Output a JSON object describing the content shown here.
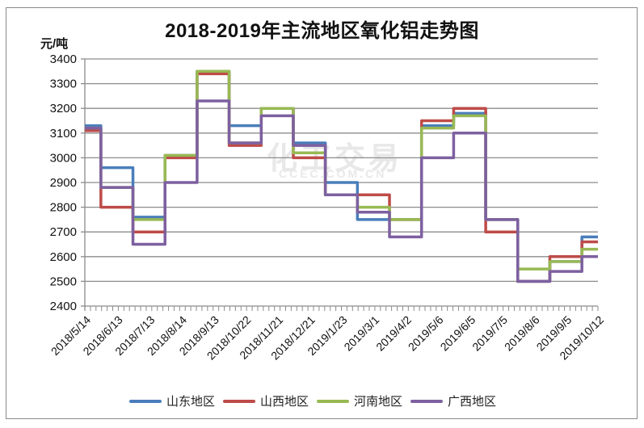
{
  "chart_data": {
    "type": "line",
    "title": "2018-2019年主流地区氧化铝走势图",
    "ylabel": "元/吨",
    "xlabel": "",
    "ylim": [
      2400,
      3400
    ],
    "yticks": [
      2400,
      2500,
      2600,
      2700,
      2800,
      2900,
      3000,
      3100,
      3200,
      3300,
      3400
    ],
    "grid": "horizontal",
    "legend_position": "bottom",
    "x": [
      "2018/5/14",
      "2018/6/13",
      "2018/7/13",
      "2018/8/14",
      "2018/9/13",
      "2018/10/22",
      "2018/11/21",
      "2018/12/21",
      "2019/1/23",
      "2019/3/1",
      "2019/4/2",
      "2019/5/6",
      "2019/6/5",
      "2019/7/5",
      "2019/8/6",
      "2019/9/5",
      "2019/10/12"
    ],
    "series": [
      {
        "name": "山东地区",
        "color": "#4a7ebb",
        "values": [
          3130,
          2960,
          2760,
          3010,
          3350,
          3130,
          3200,
          3060,
          2900,
          2750,
          2750,
          3130,
          3180,
          2750,
          2500,
          2580,
          2680
        ]
      },
      {
        "name": "山西地区",
        "color": "#be4b48",
        "values": [
          3110,
          2800,
          2700,
          3000,
          3340,
          3050,
          3200,
          3000,
          2850,
          2850,
          2750,
          3150,
          3200,
          2700,
          2500,
          2600,
          2660
        ]
      },
      {
        "name": "河南地区",
        "color": "#98b954",
        "values": [
          3120,
          2880,
          2750,
          3010,
          3350,
          3060,
          3200,
          3020,
          2850,
          2800,
          2750,
          3120,
          3170,
          2750,
          2550,
          2580,
          2630
        ]
      },
      {
        "name": "广西地区",
        "color": "#7d60a0",
        "values": [
          3120,
          2880,
          2650,
          2900,
          3230,
          3060,
          3170,
          3050,
          2850,
          2780,
          2680,
          3000,
          3100,
          2750,
          2500,
          2540,
          2600
        ]
      }
    ]
  },
  "labels": {
    "title": "2018-2019年主流地区氧化铝走势图",
    "unit": "元/吨",
    "yticks": [
      "3400",
      "3300",
      "3200",
      "3100",
      "3000",
      "2900",
      "2800",
      "2700",
      "2600",
      "2500",
      "2400"
    ],
    "xticks": [
      "2018/5/14",
      "2018/6/13",
      "2018/7/13",
      "2018/8/14",
      "2018/9/13",
      "2018/10/22",
      "2018/11/21",
      "2018/12/21",
      "2019/1/23",
      "2019/3/1",
      "2019/4/2",
      "2019/5/6",
      "2019/6/5",
      "2019/7/5",
      "2019/8/6",
      "2019/9/5",
      "2019/10/12"
    ],
    "legend": [
      "山东地区",
      "山西地区",
      "河南地区",
      "广西地区"
    ],
    "watermark": "化工交易",
    "watermark_sub": "CCEC.COM.CN"
  }
}
